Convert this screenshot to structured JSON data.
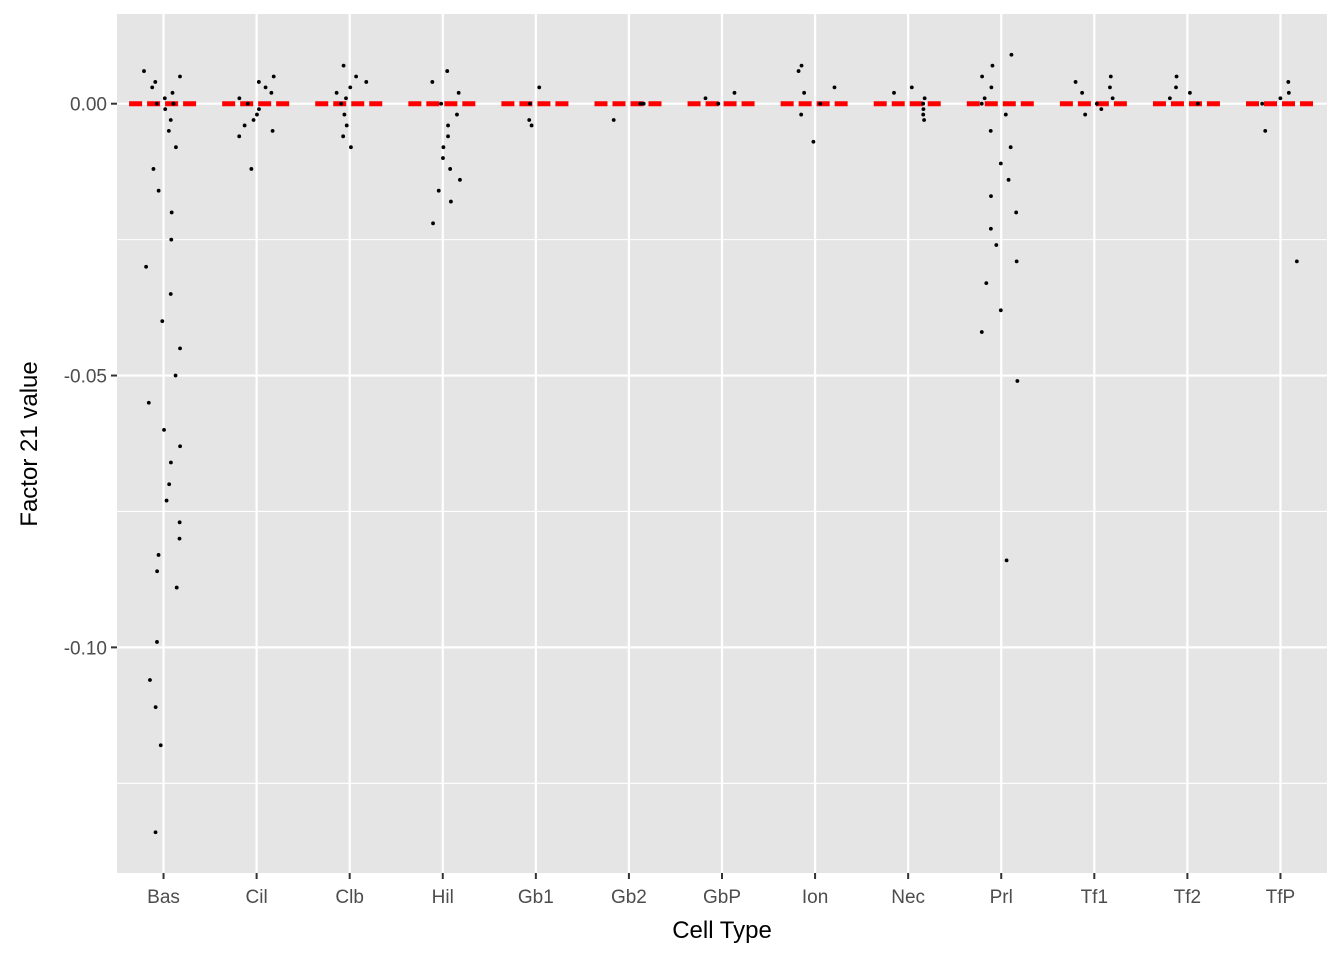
{
  "chart_data": {
    "type": "scatter",
    "subtype": "jitter strip plot with per-category median lines",
    "title": "",
    "xlabel": "Cell Type",
    "ylabel": "Factor 21 value",
    "categories": [
      "Bas",
      "Cil",
      "Clb",
      "Hil",
      "Gb1",
      "Gb2",
      "GbP",
      "Ion",
      "Nec",
      "Prl",
      "Tf1",
      "Tf2",
      "TfP"
    ],
    "ylim": [
      -0.1415,
      0.0165
    ],
    "yticks": [
      0.0,
      -0.05,
      -0.1
    ],
    "ytick_labels": [
      "0.00",
      "-0.05",
      "-0.10"
    ],
    "grid": true,
    "legend": "none",
    "median_line": {
      "value": 0.0,
      "color": "#ff0000",
      "style": "dashed"
    },
    "point_color": "#000000",
    "panel_background": "#e5e5e5",
    "grid_color": "#ffffff",
    "points": {
      "Bas": [
        0.006,
        0.005,
        0.004,
        0.003,
        0.002,
        0.001,
        0.0,
        0.0,
        0.0,
        -0.001,
        -0.003,
        -0.005,
        -0.008,
        -0.012,
        -0.016,
        -0.02,
        -0.025,
        -0.03,
        -0.035,
        -0.04,
        -0.045,
        -0.05,
        -0.055,
        -0.06,
        -0.063,
        -0.066,
        -0.07,
        -0.073,
        -0.077,
        -0.08,
        -0.083,
        -0.086,
        -0.089,
        -0.099,
        -0.106,
        -0.111,
        -0.118,
        -0.134
      ],
      "Cil": [
        0.005,
        0.004,
        0.003,
        0.002,
        0.001,
        0.0,
        -0.001,
        -0.002,
        -0.003,
        -0.004,
        -0.005,
        -0.006,
        -0.012
      ],
      "Clb": [
        0.007,
        0.005,
        0.004,
        0.003,
        0.002,
        0.001,
        0.0,
        -0.002,
        -0.004,
        -0.006,
        -0.008
      ],
      "Hil": [
        0.006,
        0.004,
        0.002,
        0.0,
        -0.002,
        -0.004,
        -0.006,
        -0.008,
        -0.01,
        -0.012,
        -0.014,
        -0.016,
        -0.018,
        -0.022
      ],
      "Gb1": [
        0.003,
        0.0,
        -0.003,
        -0.004
      ],
      "Gb2": [
        0.0,
        0.0,
        -0.003
      ],
      "GbP": [
        0.002,
        0.001,
        0.0
      ],
      "Ion": [
        0.007,
        0.006,
        0.003,
        0.002,
        0.0,
        -0.002,
        -0.007
      ],
      "Nec": [
        0.003,
        0.002,
        0.001,
        0.0,
        -0.001,
        -0.002,
        -0.003
      ],
      "Prl": [
        0.009,
        0.007,
        0.005,
        0.003,
        0.001,
        0.0,
        -0.002,
        -0.005,
        -0.008,
        -0.011,
        -0.014,
        -0.017,
        -0.02,
        -0.023,
        -0.026,
        -0.029,
        -0.033,
        -0.038,
        -0.042,
        -0.051,
        -0.084
      ],
      "Tf1": [
        0.005,
        0.004,
        0.003,
        0.002,
        0.001,
        0.0,
        -0.001,
        -0.002
      ],
      "Tf2": [
        0.005,
        0.003,
        0.002,
        0.001,
        0.0
      ],
      "TfP": [
        0.004,
        0.002,
        0.001,
        0.0,
        -0.005,
        -0.029
      ]
    }
  }
}
